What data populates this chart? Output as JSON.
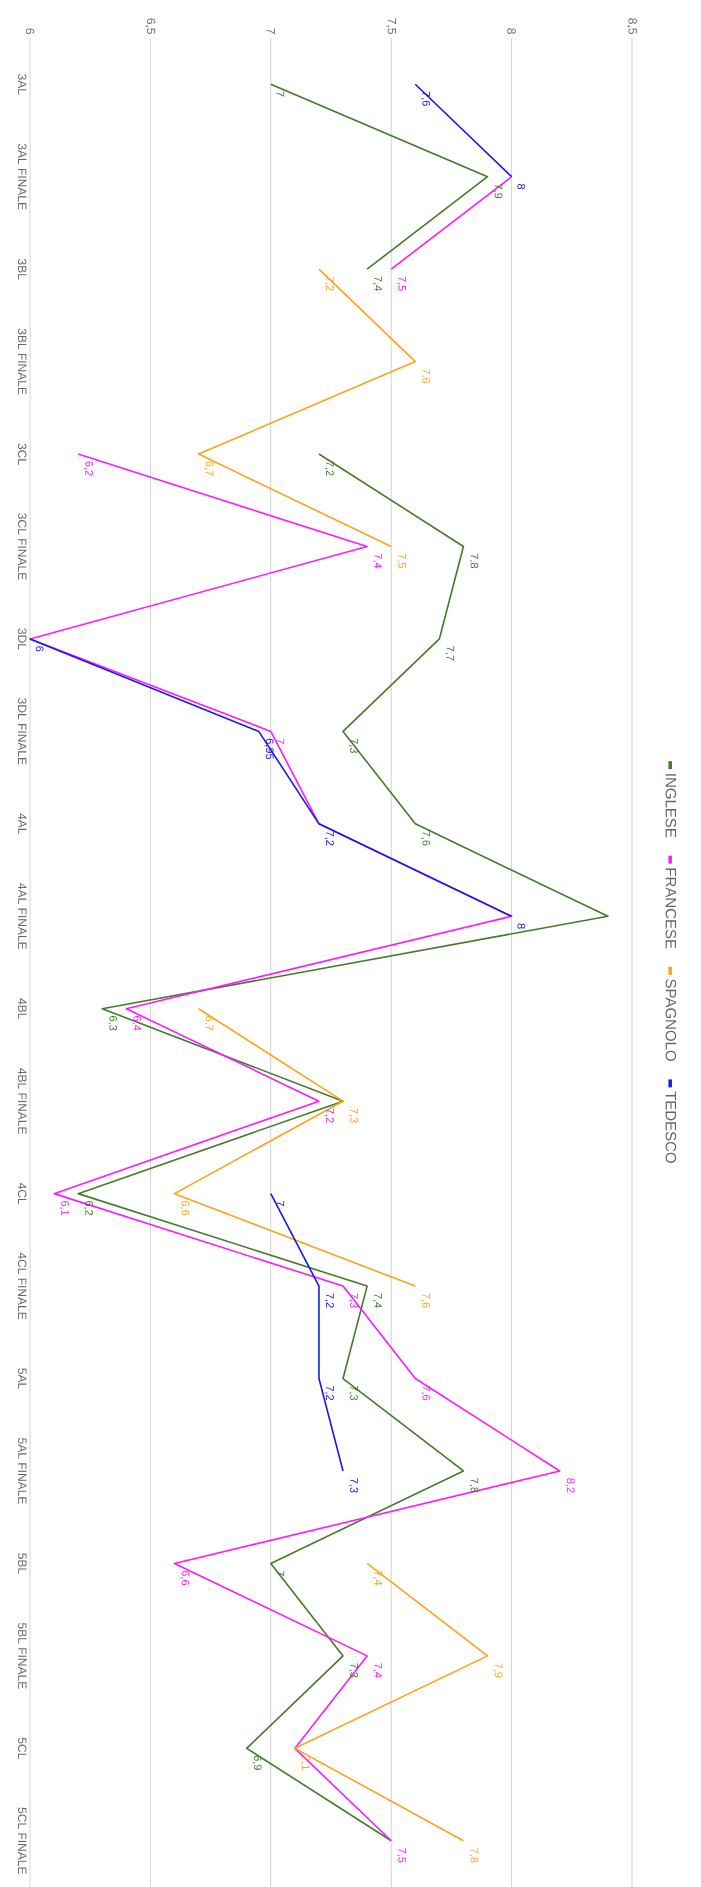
{
  "chart_data": {
    "type": "line",
    "categories": [
      "3AL",
      "3AL FINALE",
      "3BL",
      "3BL FINALE",
      "3CL",
      "3CL FINALE",
      "3DL",
      "3DL FINALE",
      "4AL",
      "4AL FINALE",
      "4BL",
      "4BL FINALE",
      "4CL",
      "4CL FINALE",
      "5AL",
      "5AL FINALE",
      "5BL",
      "5BL FINALE",
      "5CL",
      "5CL FINALE"
    ],
    "series": [
      {
        "name": "INGLESE",
        "color": "#467a2b",
        "values": [
          7,
          7.9,
          7.4,
          null,
          7.2,
          7.8,
          7.7,
          7.3,
          7.6,
          8.4,
          6.3,
          7.3,
          6.2,
          7.4,
          7.3,
          7.8,
          7,
          7.3,
          6.9,
          7.5
        ],
        "value_labels": [
          "7",
          "7,9",
          "7,4",
          null,
          "7,2",
          "7,8",
          "7,7",
          "7,3",
          "7,6",
          null,
          "6,3",
          null,
          "6,2",
          "7,4",
          "7,3",
          "7,8",
          "7",
          "7,3",
          "6,9",
          null
        ]
      },
      {
        "name": "FRANCESE",
        "color": "#ff1aff",
        "values": [
          null,
          8,
          7.5,
          null,
          6.2,
          7.4,
          6,
          7,
          7.2,
          8,
          6.4,
          7.2,
          6.1,
          7.3,
          7.6,
          8.2,
          6.6,
          7.4,
          7.1,
          7.5
        ],
        "value_labels": [
          null,
          null,
          "7,5",
          null,
          "6,2",
          "7,4",
          null,
          "7",
          null,
          null,
          "6,4",
          "7,2",
          "6,1",
          "7,3",
          "7,6",
          "8,2",
          "6,6",
          "7,4",
          null,
          "7,5"
        ]
      },
      {
        "name": "SPAGNOLO",
        "color": "#ffa31a",
        "values": [
          null,
          null,
          7.2,
          7.6,
          6.7,
          7.5,
          null,
          null,
          null,
          null,
          6.7,
          7.3,
          6.6,
          7.6,
          null,
          null,
          7.4,
          7.9,
          7.1,
          7.8
        ],
        "value_labels": [
          null,
          null,
          "7,2",
          "7,6",
          "6,7",
          "7,5",
          null,
          null,
          null,
          null,
          "6,7",
          "7,3",
          "6,6",
          "7,6",
          null,
          null,
          "7,4",
          "7,9",
          "7,1",
          "7,8"
        ]
      },
      {
        "name": "TEDESCO",
        "color": "#1a1ae6",
        "values": [
          7.6,
          8,
          null,
          null,
          null,
          null,
          6,
          6.95,
          7.2,
          8,
          null,
          null,
          7,
          7.2,
          7.2,
          7.3,
          null,
          null,
          null,
          null
        ],
        "value_labels": [
          "7,6",
          "8",
          null,
          null,
          null,
          null,
          "6",
          "6,95",
          "7,2",
          "8",
          null,
          null,
          "7",
          "7,2",
          "7,2",
          "7,3",
          null,
          null,
          null,
          null
        ]
      }
    ],
    "orientation": "horizontal",
    "xlim": [
      6,
      8.5
    ],
    "xticks": [
      {
        "value": 6,
        "label": "6"
      },
      {
        "value": 6.5,
        "label": "6,5"
      },
      {
        "value": 7,
        "label": "7"
      },
      {
        "value": 7.5,
        "label": "7,5"
      },
      {
        "value": 8,
        "label": "8"
      },
      {
        "value": 8.5,
        "label": "8,5"
      }
    ],
    "grid": "x",
    "legend": "right"
  }
}
